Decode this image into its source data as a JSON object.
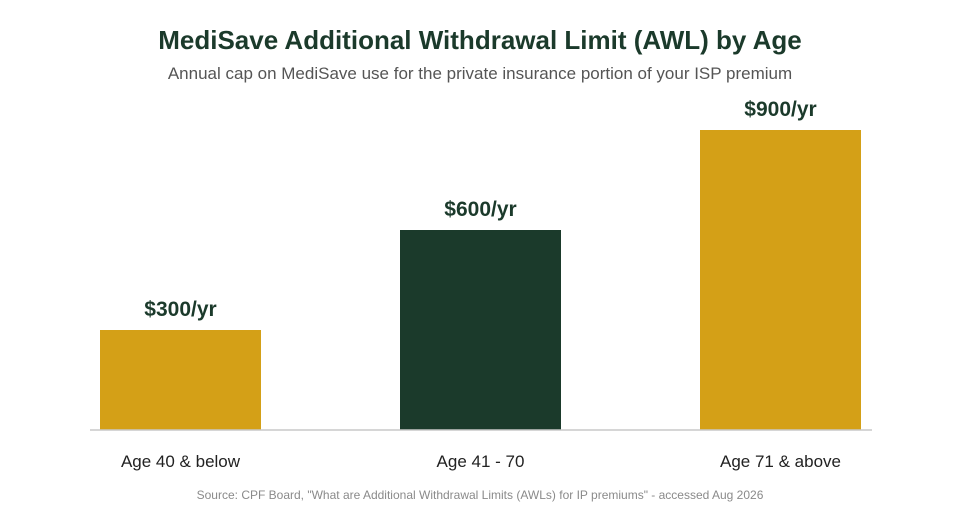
{
  "chart_data": {
    "type": "bar",
    "title": "MediSave Additional Withdrawal Limit (AWL) by Age",
    "subtitle": "Annual cap on MediSave use for the private insurance portion of your ISP premium",
    "categories": [
      "Age 40 & below",
      "Age 41 - 70",
      "Age 71 & above"
    ],
    "values": [
      300,
      600,
      900
    ],
    "data_labels": [
      "$300/yr",
      "$600/yr",
      "$900/yr"
    ],
    "bar_colors": [
      "#d4a017",
      "#1b3a2b",
      "#d4a017"
    ],
    "ylim": [
      0,
      900
    ],
    "grid": false,
    "legend": "none",
    "source": "Source: CPF Board, \"What are Additional Withdrawal Limits (AWLs) for IP premiums\" - accessed Aug 2026"
  }
}
